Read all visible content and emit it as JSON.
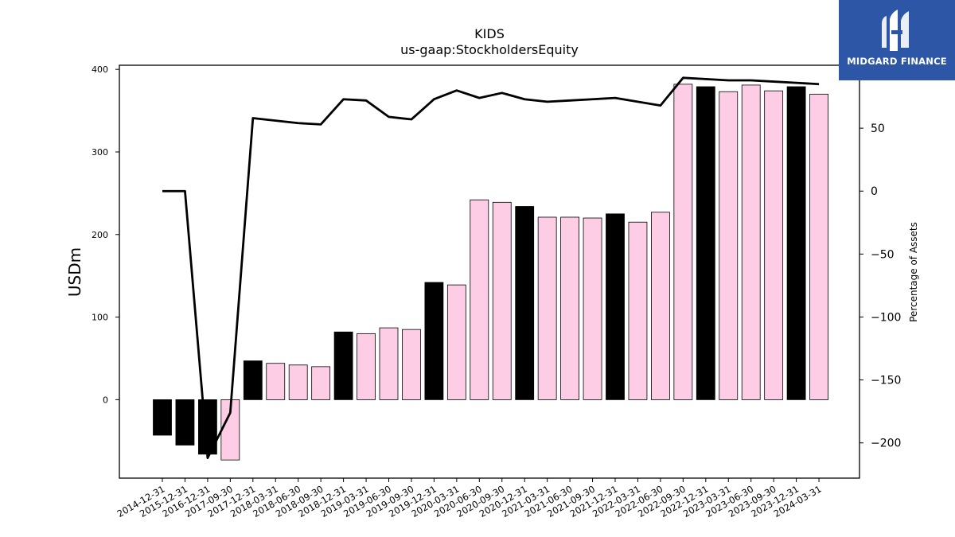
{
  "chart_data": {
    "type": "bar",
    "title": "KIDS",
    "subtitle": "us-gaap:StockholdersEquity",
    "ylabel": "USDm",
    "y2label": "Percentage of Assets",
    "ylim": [
      -95,
      405
    ],
    "y2lim": [
      -228,
      100
    ],
    "yticks": [
      0,
      100,
      200,
      300,
      400
    ],
    "y2ticks": [
      -200,
      -150,
      -100,
      -50,
      0,
      50
    ],
    "categories": [
      "2014-12-31",
      "2015-12-31",
      "2016-12-31",
      "2017-09-30",
      "2017-12-31",
      "2018-03-31",
      "2018-06-30",
      "2018-09-30",
      "2018-12-31",
      "2019-03-31",
      "2019-06-30",
      "2019-09-30",
      "2019-12-31",
      "2020-03-31",
      "2020-06-30",
      "2020-09-30",
      "2020-12-31",
      "2021-03-31",
      "2021-06-30",
      "2021-09-30",
      "2021-12-31",
      "2022-03-31",
      "2022-06-30",
      "2022-09-30",
      "2022-12-31",
      "2023-03-31",
      "2023-06-30",
      "2023-09-30",
      "2023-12-31",
      "2024-03-31"
    ],
    "series": [
      {
        "type": "bar",
        "values": [
          -43,
          -55,
          -66,
          -73,
          47,
          44,
          42,
          40,
          82,
          80,
          87,
          85,
          142,
          139,
          242,
          239,
          234,
          221,
          221,
          220,
          225,
          215,
          227,
          382,
          379,
          373,
          381,
          374,
          379,
          370
        ],
        "year_end": [
          true,
          true,
          true,
          false,
          true,
          false,
          false,
          false,
          true,
          false,
          false,
          false,
          true,
          false,
          false,
          false,
          true,
          false,
          false,
          false,
          true,
          false,
          false,
          false,
          true,
          false,
          false,
          false,
          true,
          false
        ]
      },
      {
        "type": "line",
        "axis": "right",
        "values": [
          0,
          0,
          -212,
          -176,
          58,
          56,
          54,
          53,
          73,
          72,
          59,
          57,
          73,
          80,
          74,
          78,
          73,
          71,
          72,
          73,
          74,
          71,
          68,
          90,
          89,
          88,
          88,
          87,
          86,
          85
        ]
      }
    ],
    "colors": {
      "year_end_bar": "#000000",
      "quarter_bar": "#fccde5",
      "line": "#000000"
    },
    "grid": false
  },
  "logo": {
    "text": "MIDGARD FINANCE",
    "background": "#2d56a6"
  }
}
